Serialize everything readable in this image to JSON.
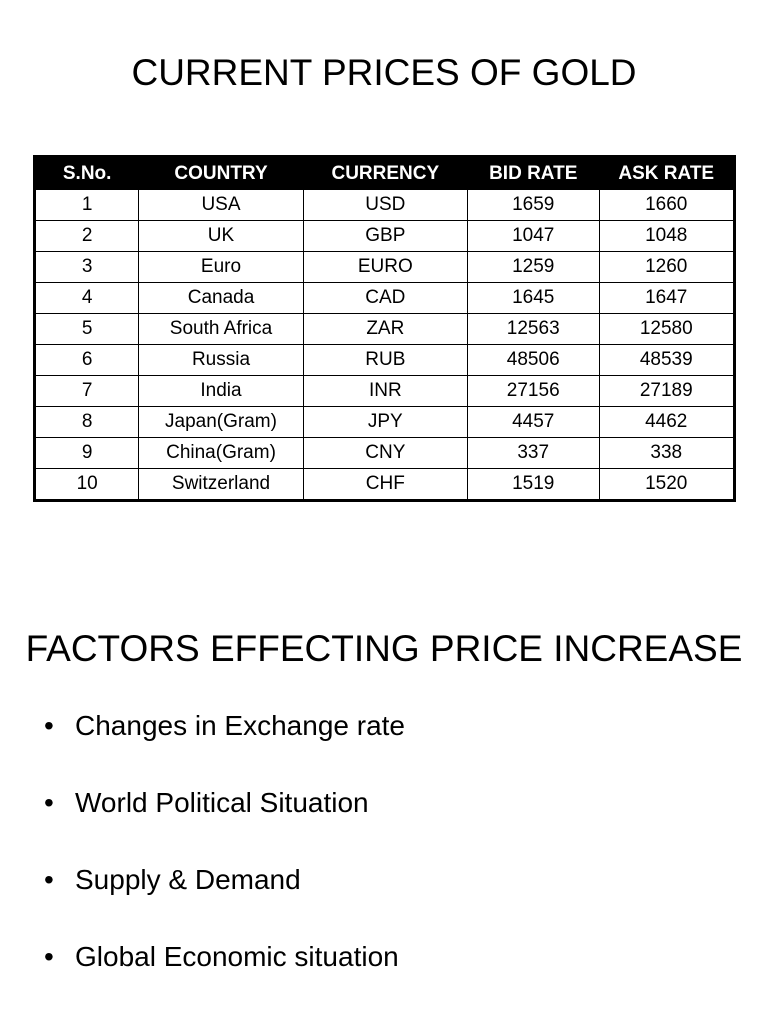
{
  "title": "CURRENT PRICES OF GOLD",
  "table": {
    "headers": [
      "S.No.",
      "COUNTRY",
      "CURRENCY",
      "BID RATE",
      "ASK RATE"
    ],
    "rows": [
      [
        "1",
        "USA",
        "USD",
        "1659",
        "1660"
      ],
      [
        "2",
        "UK",
        "GBP",
        "1047",
        "1048"
      ],
      [
        "3",
        "Euro",
        "EURO",
        "1259",
        "1260"
      ],
      [
        "4",
        "Canada",
        "CAD",
        "1645",
        "1647"
      ],
      [
        "5",
        "South Africa",
        "ZAR",
        "12563",
        "12580"
      ],
      [
        "6",
        "Russia",
        "RUB",
        "48506",
        "48539"
      ],
      [
        "7",
        "India",
        "INR",
        "27156",
        "27189"
      ],
      [
        "8",
        "Japan(Gram)",
        "JPY",
        "4457",
        "4462"
      ],
      [
        "9",
        "China(Gram)",
        "CNY",
        "337",
        "338"
      ],
      [
        "10",
        "Switzerland",
        "CHF",
        "1519",
        "1520"
      ]
    ]
  },
  "factors_title": "FACTORS EFFECTING PRICE INCREASE",
  "bullet": "•",
  "factors": [
    "Changes in Exchange rate",
    "World Political Situation",
    "Supply & Demand",
    "Global Economic situation"
  ]
}
